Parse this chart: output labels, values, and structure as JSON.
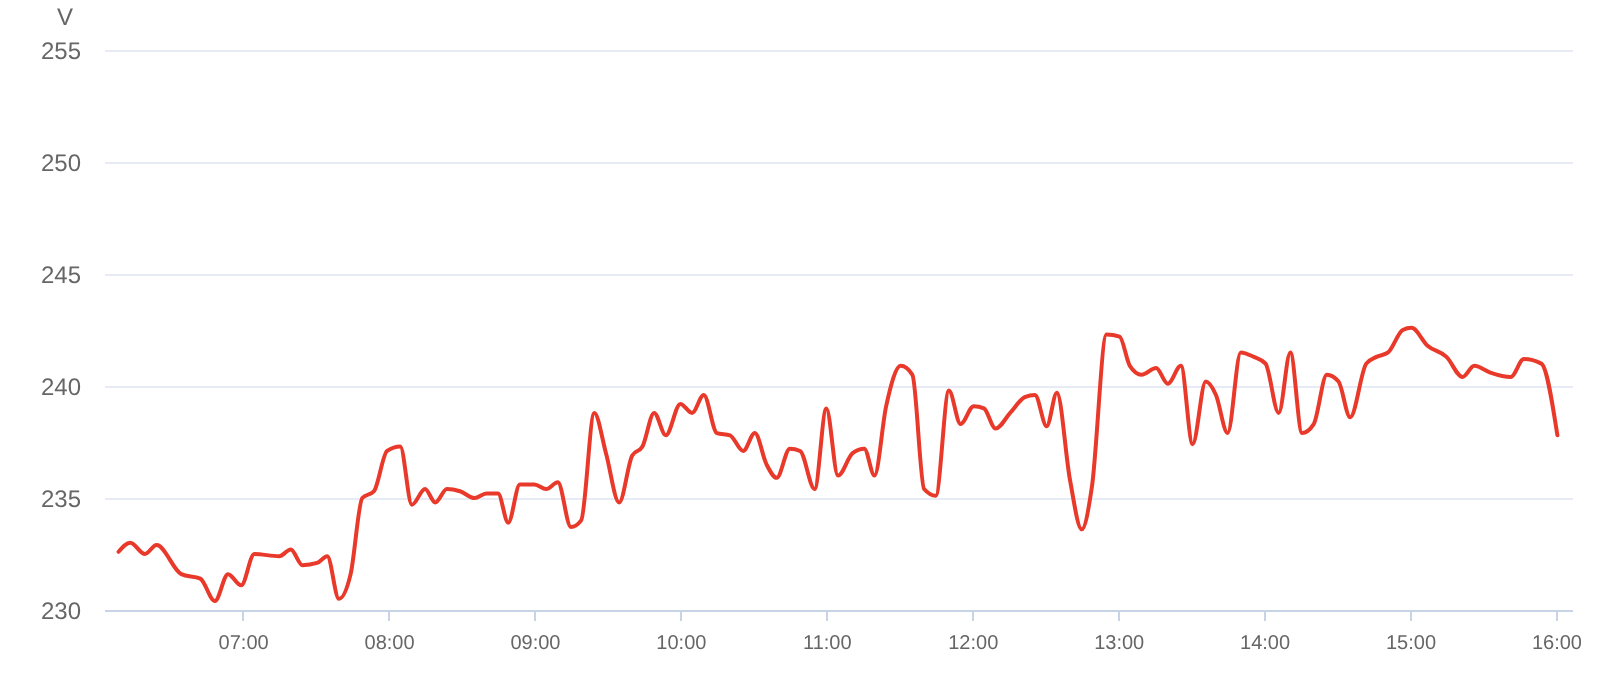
{
  "chart_data": {
    "type": "line",
    "ylabel": "V",
    "x": [
      6.15,
      6.23,
      6.33,
      6.41,
      6.58,
      6.71,
      6.81,
      6.9,
      6.99,
      7.08,
      7.25,
      7.33,
      7.41,
      7.51,
      7.58,
      7.66,
      7.74,
      7.82,
      7.9,
      7.99,
      8.08,
      8.16,
      8.25,
      8.32,
      8.4,
      8.49,
      8.59,
      8.67,
      8.75,
      8.82,
      8.9,
      9.0,
      9.08,
      9.16,
      9.25,
      9.32,
      9.41,
      9.49,
      9.58,
      9.67,
      9.74,
      9.82,
      9.9,
      10.0,
      10.08,
      10.16,
      10.25,
      10.34,
      10.43,
      10.51,
      10.59,
      10.66,
      10.75,
      10.82,
      10.92,
      11.0,
      11.08,
      11.18,
      11.26,
      11.33,
      11.41,
      11.51,
      11.59,
      11.67,
      11.75,
      11.84,
      11.92,
      12.01,
      12.08,
      12.16,
      12.26,
      12.36,
      12.43,
      12.51,
      12.58,
      12.67,
      12.75,
      12.82,
      12.92,
      13.01,
      13.08,
      13.16,
      13.26,
      13.34,
      13.43,
      13.51,
      13.6,
      13.67,
      13.75,
      13.84,
      13.93,
      14.01,
      14.1,
      14.18,
      14.26,
      14.34,
      14.43,
      14.51,
      14.59,
      14.7,
      14.77,
      14.85,
      14.95,
      15.01,
      15.12,
      15.25,
      15.36,
      15.44,
      15.55,
      15.69,
      15.78,
      15.9,
      16.01
    ],
    "series": [
      {
        "color": "#e8392a",
        "values": [
          232.6,
          233.0,
          232.5,
          232.9,
          231.6,
          231.4,
          230.4,
          231.6,
          231.1,
          232.5,
          232.4,
          232.7,
          232.0,
          232.1,
          232.4,
          230.5,
          231.6,
          235.0,
          235.3,
          237.1,
          237.3,
          234.7,
          235.4,
          234.8,
          235.4,
          235.3,
          235.0,
          235.2,
          235.2,
          233.9,
          235.6,
          235.6,
          235.4,
          235.7,
          233.7,
          234.0,
          238.8,
          237.0,
          234.8,
          236.9,
          237.3,
          238.8,
          237.8,
          239.2,
          238.8,
          239.6,
          237.9,
          237.8,
          237.1,
          237.9,
          236.5,
          235.9,
          237.2,
          237.1,
          235.4,
          239.0,
          236.0,
          237.0,
          237.2,
          236.0,
          239.1,
          240.9,
          240.5,
          235.4,
          235.1,
          239.8,
          238.3,
          239.1,
          239.0,
          238.1,
          238.8,
          239.5,
          239.6,
          238.2,
          239.7,
          235.8,
          233.6,
          235.5,
          242.3,
          242.2,
          240.9,
          240.5,
          240.8,
          240.1,
          240.9,
          237.4,
          240.2,
          239.6,
          237.9,
          241.5,
          241.3,
          241.0,
          238.8,
          241.5,
          237.9,
          238.3,
          240.5,
          240.2,
          238.6,
          241.0,
          241.3,
          241.5,
          242.5,
          242.6,
          241.8,
          241.3,
          240.4,
          240.9,
          240.6,
          240.4,
          241.2,
          241.0,
          237.8
        ]
      }
    ],
    "xlim": [
      6.05,
      16.11
    ],
    "xticks": [
      {
        "value": 7,
        "label": "07:00"
      },
      {
        "value": 8,
        "label": "08:00"
      },
      {
        "value": 9,
        "label": "09:00"
      },
      {
        "value": 10,
        "label": "10:00"
      },
      {
        "value": 11,
        "label": "11:00"
      },
      {
        "value": 12,
        "label": "12:00"
      },
      {
        "value": 13,
        "label": "13:00"
      },
      {
        "value": 14,
        "label": "14:00"
      },
      {
        "value": 15,
        "label": "15:00"
      },
      {
        "value": 16,
        "label": "16:00"
      }
    ],
    "ylim": [
      230,
      255
    ],
    "yticks": [
      230,
      235,
      240,
      245,
      250,
      255
    ],
    "grid": "y",
    "marker": "none",
    "line_style": "solid"
  }
}
